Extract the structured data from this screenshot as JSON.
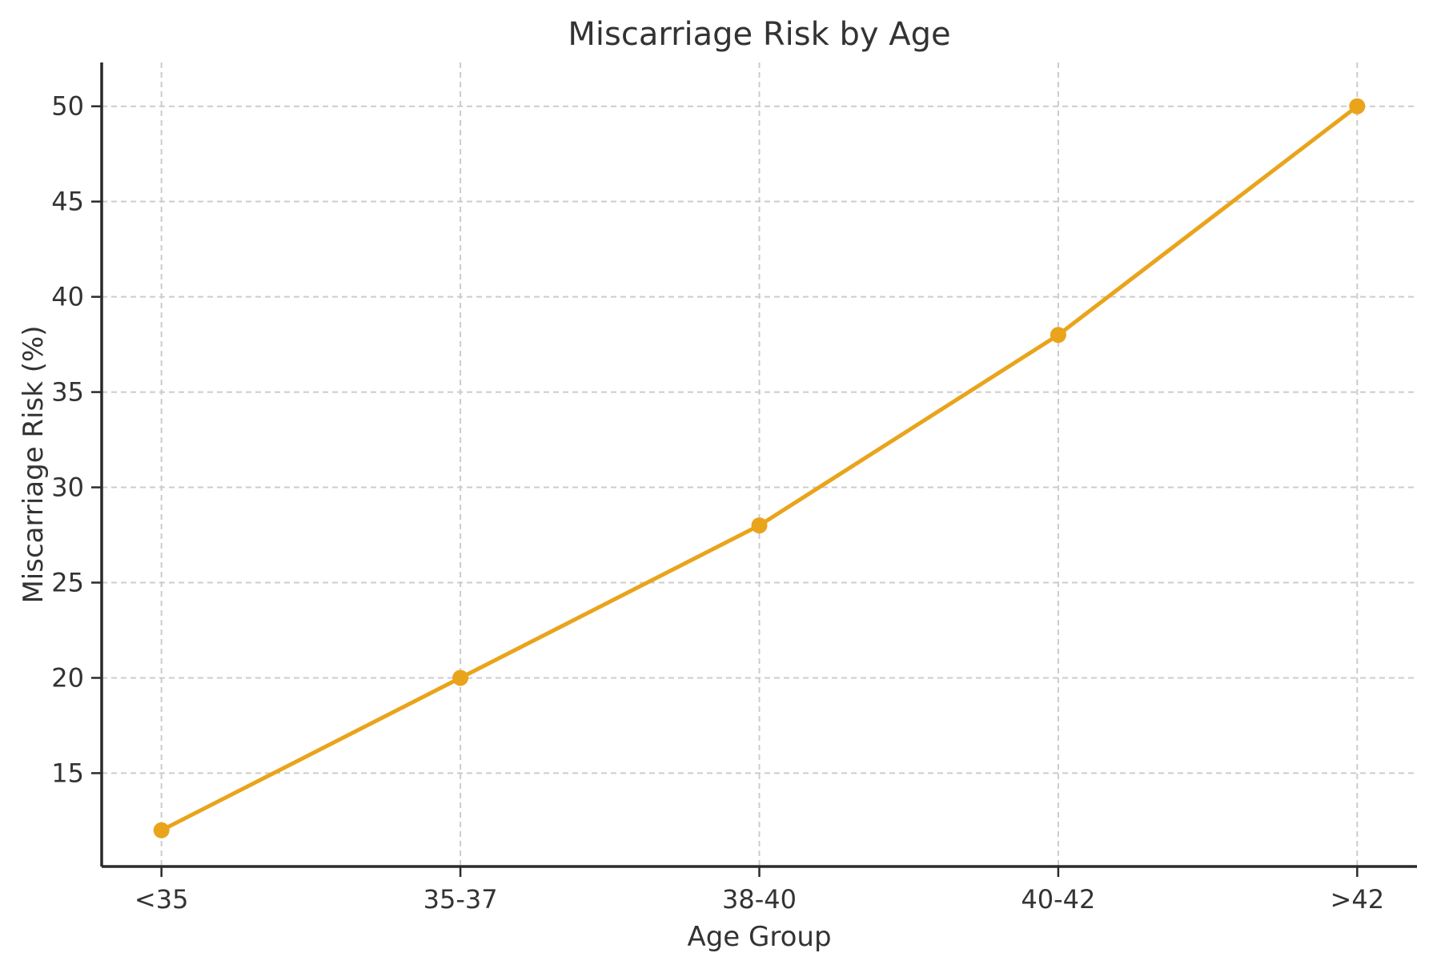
{
  "figure": {
    "background": "#ffffff"
  },
  "chart_data": {
    "type": "line",
    "title": "Miscarriage Risk by Age",
    "xlabel": "Age Group",
    "ylabel": "Miscarriage Risk (%)",
    "categories": [
      "<35",
      "35-37",
      "38-40",
      "40-42",
      ">42"
    ],
    "series": [
      {
        "name": "Miscarriage Risk (%)",
        "values": [
          12,
          20,
          28,
          38,
          50
        ]
      }
    ],
    "yticks": [
      15,
      20,
      25,
      30,
      35,
      40,
      45,
      50
    ],
    "ylim": [
      10.1,
      52.3
    ],
    "grid": "both, dashed",
    "legend": "none",
    "line_color": "#E9A41B",
    "marker": "circle",
    "marker_color": "#E9A41B",
    "grid_color": "#cccccc",
    "spine_color": "#2a2a2a",
    "tick_color": "#2a2a2a",
    "text_color": "#333333"
  }
}
